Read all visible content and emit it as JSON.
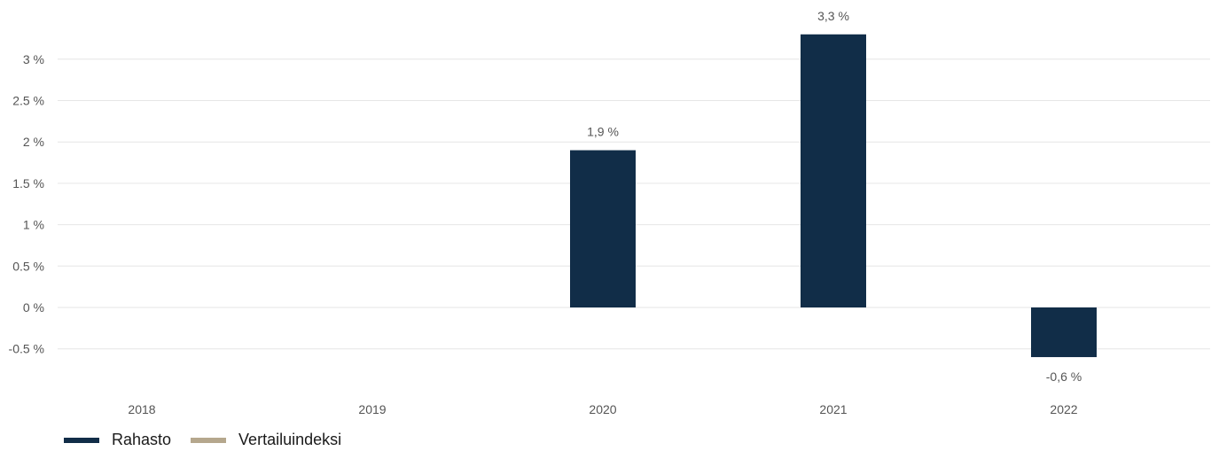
{
  "chart_data": {
    "type": "bar",
    "categories": [
      "2018",
      "2019",
      "2020",
      "2021",
      "2022"
    ],
    "series": [
      {
        "name": "Rahasto",
        "color": "#112d48",
        "values": [
          null,
          null,
          1.9,
          3.3,
          -0.6
        ],
        "labels": [
          "",
          "",
          "1,9 %",
          "3,3 %",
          "-0,6 %"
        ]
      },
      {
        "name": "Vertailuindeksi",
        "color": "#b5a78d",
        "values": [
          null,
          null,
          null,
          null,
          null
        ],
        "labels": [
          "",
          "",
          "",
          "",
          ""
        ]
      }
    ],
    "ylim": [
      -0.6,
      3.3
    ],
    "yticks": [
      -0.5,
      0,
      0.5,
      1,
      1.5,
      2,
      2.5,
      3
    ],
    "ytick_labels": [
      "-0.5 %",
      "0 %",
      "0.5 %",
      "1 %",
      "1.5 %",
      "2 %",
      "2.5 %",
      "3 %"
    ],
    "grid": true,
    "legend_position": "bottom-left",
    "title": "",
    "xlabel": "",
    "ylabel": ""
  }
}
